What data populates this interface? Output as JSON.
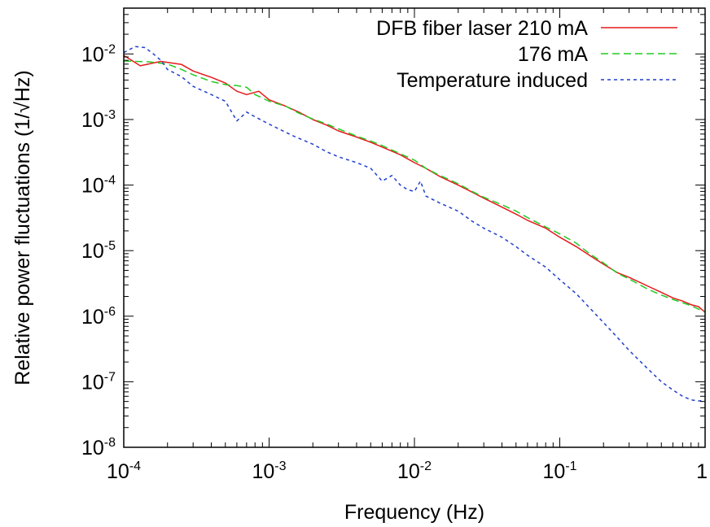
{
  "chart_data": {
    "type": "line",
    "xlabel": "Frequency (Hz)",
    "ylabel": "Relative power fluctuations (1/√Hz)",
    "xscale": "log",
    "yscale": "log",
    "xlim": [
      0.0001,
      1
    ],
    "ylim": [
      1e-08,
      0.05
    ],
    "grid": false,
    "legend_position": "top-right",
    "x_ticks": [
      {
        "value": 0.0001,
        "base": "10",
        "exp": "-4"
      },
      {
        "value": 0.001,
        "base": "10",
        "exp": "-3"
      },
      {
        "value": 0.01,
        "base": "10",
        "exp": "-2"
      },
      {
        "value": 0.1,
        "base": "10",
        "exp": "-1"
      },
      {
        "value": 1,
        "base": "1",
        "exp": ""
      }
    ],
    "y_ticks": [
      {
        "value": 1e-08,
        "base": "10",
        "exp": "-8"
      },
      {
        "value": 1e-07,
        "base": "10",
        "exp": "-7"
      },
      {
        "value": 1e-06,
        "base": "10",
        "exp": "-6"
      },
      {
        "value": 1e-05,
        "base": "10",
        "exp": "-5"
      },
      {
        "value": 0.0001,
        "base": "10",
        "exp": "-4"
      },
      {
        "value": 0.001,
        "base": "10",
        "exp": "-3"
      },
      {
        "value": 0.01,
        "base": "10",
        "exp": "-2"
      }
    ],
    "series": [
      {
        "name": "DFB fiber laser 210 mA",
        "color": "#e41a1c",
        "dash": "solid",
        "points": [
          [
            0.0001,
            0.0095
          ],
          [
            0.00013,
            0.0066
          ],
          [
            0.00018,
            0.0077
          ],
          [
            0.00025,
            0.0069
          ],
          [
            0.0003,
            0.0055
          ],
          [
            0.0004,
            0.0044
          ],
          [
            0.0005,
            0.0036
          ],
          [
            0.0006,
            0.0027
          ],
          [
            0.0007,
            0.0024
          ],
          [
            0.00085,
            0.0027
          ],
          [
            0.001,
            0.002
          ],
          [
            0.0013,
            0.0016
          ],
          [
            0.0016,
            0.0013
          ],
          [
            0.002,
            0.001
          ],
          [
            0.0025,
            0.00082
          ],
          [
            0.003,
            0.00067
          ],
          [
            0.004,
            0.00054
          ],
          [
            0.005,
            0.00045
          ],
          [
            0.006,
            0.00038
          ],
          [
            0.008,
            0.00029
          ],
          [
            0.01,
            0.00022
          ],
          [
            0.012,
            0.00018
          ],
          [
            0.015,
            0.000135
          ],
          [
            0.02,
            0.0001
          ],
          [
            0.025,
            7.8e-05
          ],
          [
            0.03,
            6.3e-05
          ],
          [
            0.04,
            4.6e-05
          ],
          [
            0.05,
            3.6e-05
          ],
          [
            0.06,
            2.9e-05
          ],
          [
            0.08,
            2.2e-05
          ],
          [
            0.1,
            1.6e-05
          ],
          [
            0.13,
            1.15e-05
          ],
          [
            0.16,
            8.5e-06
          ],
          [
            0.2,
            6.2e-06
          ],
          [
            0.25,
            4.6e-06
          ],
          [
            0.3,
            3.9e-06
          ],
          [
            0.4,
            2.9e-06
          ],
          [
            0.5,
            2.3e-06
          ],
          [
            0.6,
            1.9e-06
          ],
          [
            0.7,
            1.7e-06
          ],
          [
            0.8,
            1.5e-06
          ],
          [
            0.9,
            1.4e-06
          ],
          [
            1,
            1.15e-06
          ]
        ]
      },
      {
        "name": "176 mA",
        "color": "#22cc22",
        "dash": "long",
        "points": [
          [
            0.0001,
            0.0078
          ],
          [
            0.00015,
            0.0076
          ],
          [
            0.0002,
            0.007
          ],
          [
            0.00025,
            0.0058
          ],
          [
            0.0003,
            0.0048
          ],
          [
            0.0004,
            0.0038
          ],
          [
            0.0005,
            0.0034
          ],
          [
            0.0006,
            0.0033
          ],
          [
            0.0007,
            0.0031
          ],
          [
            0.0008,
            0.0024
          ],
          [
            0.001,
            0.0019
          ],
          [
            0.0013,
            0.0016
          ],
          [
            0.0016,
            0.00125
          ],
          [
            0.002,
            0.00102
          ],
          [
            0.0025,
            0.00085
          ],
          [
            0.003,
            0.00072
          ],
          [
            0.004,
            0.00056
          ],
          [
            0.005,
            0.00047
          ],
          [
            0.006,
            0.0004
          ],
          [
            0.008,
            0.0003
          ],
          [
            0.01,
            0.00024
          ],
          [
            0.012,
            0.00018
          ],
          [
            0.015,
            0.00014
          ],
          [
            0.02,
            0.000105
          ],
          [
            0.025,
            8e-05
          ],
          [
            0.03,
            6.5e-05
          ],
          [
            0.04,
            5e-05
          ],
          [
            0.05,
            4e-05
          ],
          [
            0.06,
            3.2e-05
          ],
          [
            0.08,
            2.3e-05
          ],
          [
            0.1,
            1.8e-05
          ],
          [
            0.13,
            1.3e-05
          ],
          [
            0.16,
            9e-06
          ],
          [
            0.2,
            6.5e-06
          ],
          [
            0.25,
            4.5e-06
          ],
          [
            0.3,
            3.7e-06
          ],
          [
            0.4,
            2.6e-06
          ],
          [
            0.5,
            2.1e-06
          ],
          [
            0.6,
            1.8e-06
          ],
          [
            0.7,
            1.6e-06
          ],
          [
            0.8,
            1.45e-06
          ],
          [
            1,
            1.15e-06
          ]
        ]
      },
      {
        "name": "Temperature induced",
        "color": "#1f3fcc",
        "dash": "short",
        "points": [
          [
            0.0001,
            0.0105
          ],
          [
            0.00012,
            0.013
          ],
          [
            0.00014,
            0.0125
          ],
          [
            0.00016,
            0.01
          ],
          [
            0.00018,
            0.008
          ],
          [
            0.0002,
            0.0058
          ],
          [
            0.00022,
            0.0052
          ],
          [
            0.00025,
            0.0045
          ],
          [
            0.0003,
            0.0032
          ],
          [
            0.0004,
            0.0024
          ],
          [
            0.0005,
            0.0019
          ],
          [
            0.0006,
            0.00095
          ],
          [
            0.0007,
            0.0013
          ],
          [
            0.0008,
            0.0011
          ],
          [
            0.001,
            0.00085
          ],
          [
            0.0013,
            0.00064
          ],
          [
            0.0015,
            0.00055
          ],
          [
            0.002,
            0.00042
          ],
          [
            0.0025,
            0.00032
          ],
          [
            0.003,
            0.00027
          ],
          [
            0.004,
            0.00022
          ],
          [
            0.005,
            0.00018
          ],
          [
            0.006,
            0.000115
          ],
          [
            0.007,
            0.00014
          ],
          [
            0.008,
            0.0001
          ],
          [
            0.009,
            8.5e-05
          ],
          [
            0.01,
            8e-05
          ],
          [
            0.011,
            0.000115
          ],
          [
            0.012,
            6.8e-05
          ],
          [
            0.015,
            5.3e-05
          ],
          [
            0.02,
            4e-05
          ],
          [
            0.025,
            2.8e-05
          ],
          [
            0.03,
            2.2e-05
          ],
          [
            0.04,
            1.6e-05
          ],
          [
            0.05,
            1.15e-05
          ],
          [
            0.06,
            8.5e-06
          ],
          [
            0.08,
            5.6e-06
          ],
          [
            0.1,
            3.6e-06
          ],
          [
            0.13,
            2.2e-06
          ],
          [
            0.16,
            1.35e-06
          ],
          [
            0.2,
            8e-07
          ],
          [
            0.25,
            4.7e-07
          ],
          [
            0.3,
            3e-07
          ],
          [
            0.4,
            1.6e-07
          ],
          [
            0.5,
            1e-07
          ],
          [
            0.6,
            7.5e-08
          ],
          [
            0.7,
            6e-08
          ],
          [
            0.8,
            5.3e-08
          ],
          [
            0.9,
            5.1e-08
          ],
          [
            1,
            5.2e-08
          ]
        ]
      }
    ]
  }
}
